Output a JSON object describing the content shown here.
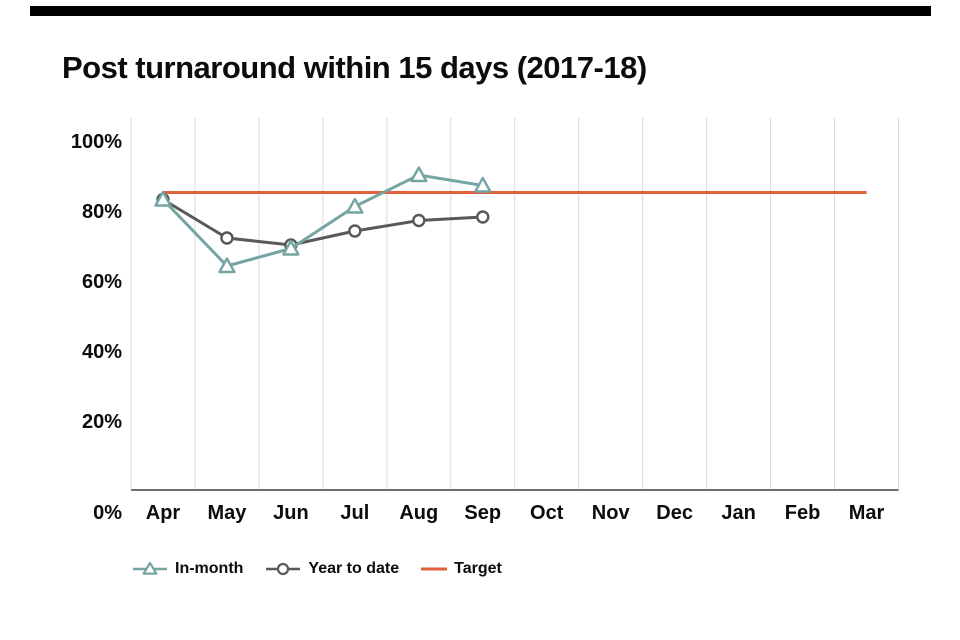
{
  "chart_data": {
    "type": "line",
    "title": "Post turnaround within 15 days (2017-18)",
    "categories": [
      "Apr",
      "May",
      "Jun",
      "Jul",
      "Aug",
      "Sep",
      "Oct",
      "Nov",
      "Dec",
      "Jan",
      "Feb",
      "Mar"
    ],
    "y_ticks": [
      "100%",
      "80%",
      "60%",
      "40%",
      "20%",
      "0%"
    ],
    "ylim": [
      0,
      100
    ],
    "grid": "vertical-gridlines-only",
    "legend_position": "bottom",
    "series": [
      {
        "name": "Year to date",
        "marker": "circle",
        "color": "#595959",
        "values": [
          83,
          72,
          70,
          74,
          77,
          78
        ]
      },
      {
        "name": "In-month",
        "marker": "triangle",
        "color": "#74a5a2",
        "values": [
          83,
          64,
          69,
          81,
          90,
          87
        ]
      }
    ],
    "target": {
      "name": "Target",
      "value": 85,
      "color": "#e0613c"
    }
  },
  "colors": {
    "gridline": "#d9d9d9",
    "axis_line": "#404040",
    "text": "#0b0c0c",
    "top_bar": "#000000",
    "background": "#ffffff"
  }
}
